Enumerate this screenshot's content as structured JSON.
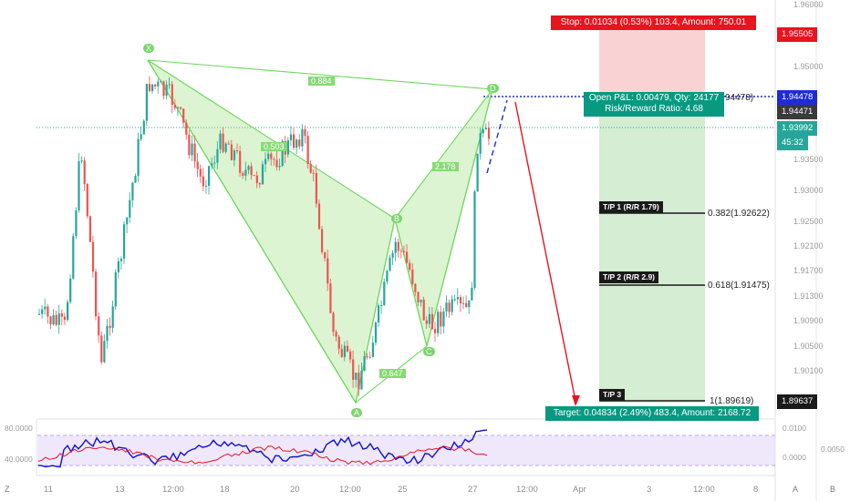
{
  "price_axis": {
    "ticks": [
      "1.96000",
      "1.95000",
      "1.93500",
      "1.93000",
      "1.92500",
      "1.92100",
      "1.91700",
      "1.91300",
      "1.90900",
      "1.90500",
      "1.90100"
    ],
    "labels": {
      "stop_price": {
        "text": "1.95505",
        "color": "#e8141e"
      },
      "entry_price": {
        "text": "1.94478",
        "color": "#1f2bd6"
      },
      "current_price": {
        "text": "1.94471",
        "color": "#3a3a3a"
      },
      "last_price": {
        "text": "1.93992",
        "color": "#26a69a"
      },
      "countdown": {
        "text": "45:32",
        "color": "#26a69a"
      },
      "target_price": {
        "text": "1.89637",
        "color": "#1a1a1a"
      }
    }
  },
  "time_axis": {
    "ticks": [
      "11",
      "13",
      "12:00",
      "18",
      "20",
      "12:00",
      "25",
      "27",
      "12:00",
      "Apr",
      "3",
      "12:00",
      "8"
    ]
  },
  "oscillator": {
    "left_labels": [
      "80.0000",
      "40.0000"
    ],
    "right_ticks": [
      "0.0100",
      "0.0050",
      "0.0000"
    ]
  },
  "position_tool": {
    "stop_banner": "Stop: 0.01034 (0.53%) 103.4, Amount: 750.01",
    "pnl_line1": "Open P&L: 0.00479, Qty: 24177",
    "pnl_line2": "Risk/Reward Ratio: 4.68",
    "entry_level_text": "94478)",
    "target_banner": "Target: 0.04834 (2.49%) 483.4, Amount: 2168.72",
    "colors": {
      "stop": "#e8141e",
      "profit": "#089981"
    }
  },
  "harmonic_pattern": {
    "points": [
      "X",
      "A",
      "B",
      "C",
      "D"
    ],
    "ratios": {
      "xb": "0.884",
      "ab": "0.503",
      "bc": "0.647",
      "bd": "2.178"
    }
  },
  "take_profits": [
    {
      "label": "T/P 1 (R/R 1.79)",
      "fib": "0.382(1.92622)"
    },
    {
      "label": "T/P 2 (R/R 2.9)",
      "fib": "0.618(1.91475)"
    },
    {
      "label": "T/P 3",
      "fib": "1(1.89619)"
    }
  ],
  "sidebar": {
    "left_bottom": "Z",
    "right_bottom": "B",
    "auto": "A"
  }
}
